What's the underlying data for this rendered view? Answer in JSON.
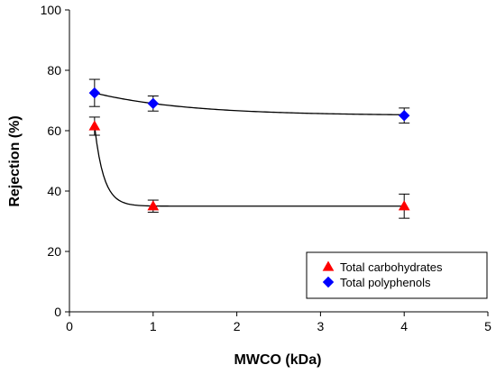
{
  "chart_data": {
    "type": "scatter",
    "xlabel": "MWCO (kDa)",
    "ylabel": "Rejection (%)",
    "xlim": [
      0,
      5
    ],
    "ylim": [
      0,
      100
    ],
    "xticks": [
      "0",
      "1",
      "2",
      "3",
      "4",
      "5"
    ],
    "yticks": [
      "0",
      "20",
      "40",
      "60",
      "80",
      "100"
    ],
    "grid": false,
    "legend_position": "bottom-right",
    "series": [
      {
        "name": "Total carbohydrates",
        "marker": "triangle",
        "color": "#ff0000",
        "x": [
          0.3,
          1,
          4
        ],
        "y": [
          61.5,
          35,
          35
        ],
        "error": [
          3,
          2,
          4
        ],
        "fit": "exponential decay"
      },
      {
        "name": "Total polyphenols",
        "marker": "diamond",
        "color": "#0000ff",
        "x": [
          0.3,
          1,
          4
        ],
        "y": [
          72.5,
          69,
          65
        ],
        "error": [
          4.5,
          2.5,
          2.5
        ],
        "fit": "exponential decay"
      }
    ]
  }
}
